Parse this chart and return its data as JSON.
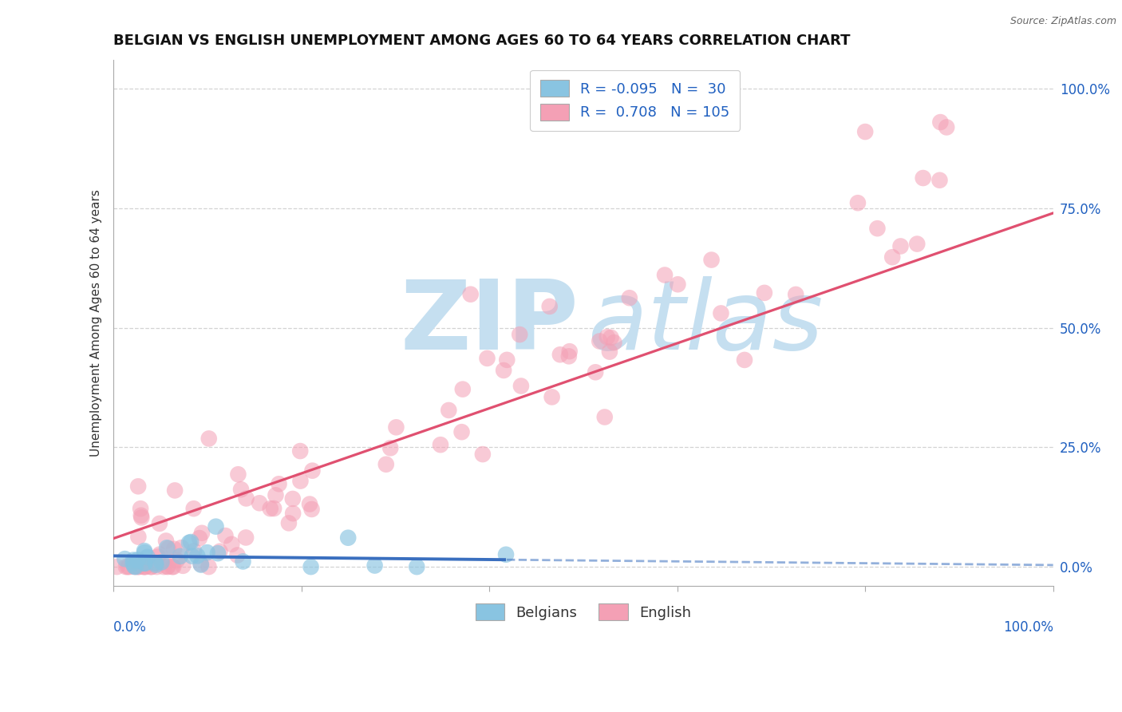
{
  "title": "BELGIAN VS ENGLISH UNEMPLOYMENT AMONG AGES 60 TO 64 YEARS CORRELATION CHART",
  "source": "Source: ZipAtlas.com",
  "ylabel": "Unemployment Among Ages 60 to 64 years",
  "xlim": [
    0.0,
    1.0
  ],
  "ylim": [
    -0.04,
    1.06
  ],
  "belgian_R": -0.095,
  "belgian_N": 30,
  "english_R": 0.708,
  "english_N": 105,
  "belgian_color": "#89c4e1",
  "english_color": "#f4a0b5",
  "belgian_line_color": "#3a6fbf",
  "english_line_color": "#e05070",
  "background_color": "#ffffff",
  "grid_color": "#cccccc",
  "ytick_labels": [
    "0.0%",
    "25.0%",
    "50.0%",
    "75.0%",
    "100.0%"
  ],
  "ytick_values": [
    0.0,
    0.25,
    0.5,
    0.75,
    1.0
  ],
  "title_fontsize": 13,
  "axis_label_color": "#2060c0",
  "legend_text_color": "#2060c0",
  "watermark_color": "#c5dff0"
}
